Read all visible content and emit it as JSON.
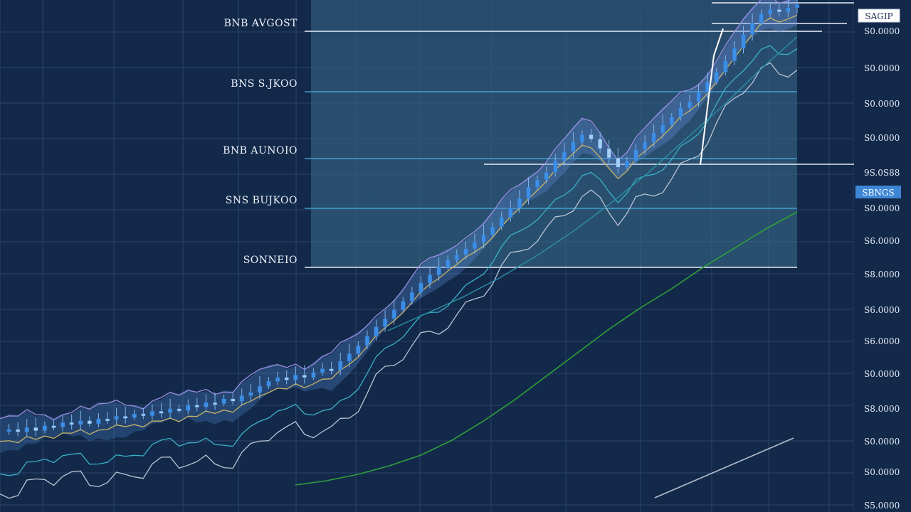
{
  "chart_data": {
    "type": "line",
    "title": "",
    "xlabel": "",
    "ylabel": "",
    "grid": true,
    "y_tick_labels": [
      "S0.0000",
      "S0.0000",
      "S0.0000",
      "S0.0000",
      "9S.0S88",
      "S0.0000",
      "S6.0000",
      "S8.0000",
      "S6.0000",
      "S6.0000",
      "S0.0000",
      "S8.0000",
      "S0.0000",
      "S0.0000",
      "S5.0000"
    ],
    "level_labels": [
      "BNB AVGOST",
      "BNS S.JKOO",
      "BNB AUNOIO",
      "SNS BUJKOO",
      "SONNEIO"
    ],
    "price_tags": {
      "top": "SAGIP",
      "current": "SBNGS"
    },
    "series": [
      {
        "values": [
          38,
          41,
          37,
          44,
          39,
          47,
          45,
          52,
          49,
          55,
          50,
          58,
          57,
          62,
          60,
          66,
          63,
          70,
          68,
          74,
          71,
          80,
          77,
          84,
          82,
          90,
          86,
          95,
          100,
          110,
          118,
          124,
          120,
          128,
          124,
          132,
          138,
          136,
          150,
          162,
          175,
          190,
          205,
          218,
          232,
          246,
          260,
          275,
          288,
          300,
          312,
          320,
          330,
          340,
          352,
          365,
          380,
          395,
          410,
          428,
          440,
          452,
          470,
          485,
          500,
          512,
          505,
          490,
          475,
          460,
          470,
          488,
          500,
          515,
          528,
          540,
          555,
          565,
          580,
          596,
          612,
          630,
          650,
          672,
          690,
          705,
          712,
          708,
          715,
          720
        ]
      },
      {
        "values": [
          30,
          40,
          55,
          75,
          100,
          135,
          180,
          230,
          285,
          340,
          395,
          445,
          490,
          540,
          585,
          630,
          670
        ]
      },
      {
        "values": [
          0,
          30,
          60,
          95,
          135,
          180,
          230,
          285,
          345,
          405,
          470,
          530
        ]
      },
      {
        "values": [
          0,
          40,
          80
        ]
      }
    ]
  }
}
